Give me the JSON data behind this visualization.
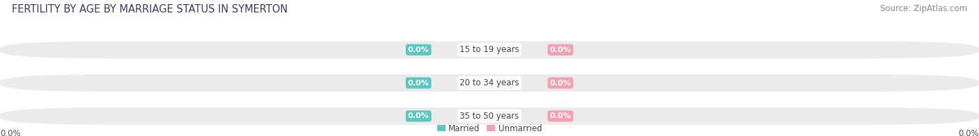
{
  "title": "FERTILITY BY AGE BY MARRIAGE STATUS IN SYMERTON",
  "source": "Source: ZipAtlas.com",
  "categories": [
    "15 to 19 years",
    "20 to 34 years",
    "35 to 50 years"
  ],
  "married_color": "#5BC8C0",
  "unmarried_color": "#F4A0B0",
  "bar_bg_color": "#EBEBEB",
  "title_fontsize": 10.5,
  "source_fontsize": 8.5,
  "label_fontsize": 8,
  "category_fontsize": 8.5,
  "left_axis_label": "0.0%",
  "right_axis_label": "0.0%",
  "legend_married": "Married",
  "legend_unmarried": "Unmarried",
  "fig_width": 14.06,
  "fig_height": 1.96,
  "bg_color": "#FFFFFF"
}
